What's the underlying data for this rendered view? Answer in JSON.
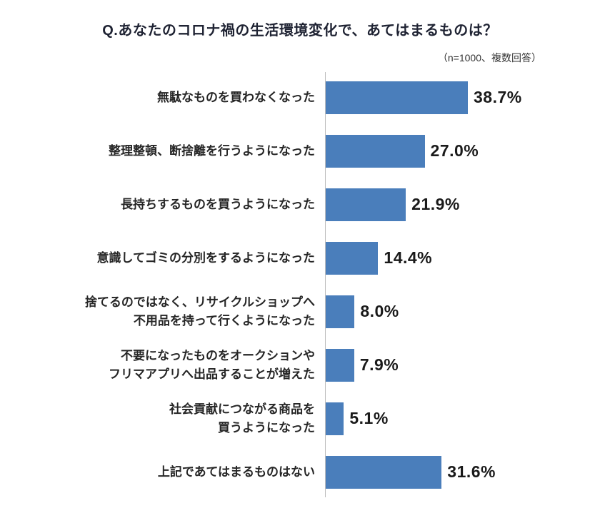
{
  "header": {
    "title": "Q.あなたのコロナ禍の生活環境変化で、あてはまるものは？",
    "subtitle": "（n=1000、複数回答）"
  },
  "colors": {
    "bar": "#4a7ebb",
    "axis": "#bdbdbd",
    "title_text": "#1f2333",
    "label_text": "#262626",
    "value_text": "#1a1a1a"
  },
  "chart_data": {
    "type": "bar",
    "orientation": "horizontal",
    "title": "Q.あなたのコロナ禍の生活環境変化で、あてはまるものは？",
    "sample_note": "（n=1000、複数回答）",
    "categories": [
      "無駄なものを買わなくなった",
      "整理整頓、断捨離を行うようになった",
      "長持ちするものを買うようになった",
      "意識してゴミの分別をするようになった",
      "捨てるのではなく、リサイクルショップへ\n不用品を持って行くようになった",
      "不要になったものをオークションや\nフリマアプリへ出品することが増えた",
      "社会貢献につながる商品を\n買うようになった",
      "上記であてはまるものはない"
    ],
    "values": [
      38.7,
      27.0,
      21.9,
      14.4,
      8.0,
      7.9,
      5.1,
      31.6
    ],
    "value_labels": [
      "38.7%",
      "27.0%",
      "21.9%",
      "14.4%",
      "8.0%",
      "7.9%",
      "5.1%",
      "31.6%"
    ],
    "xlabel": "",
    "ylabel": "",
    "xlim": [
      0,
      40
    ],
    "grid": false,
    "legend": false
  }
}
